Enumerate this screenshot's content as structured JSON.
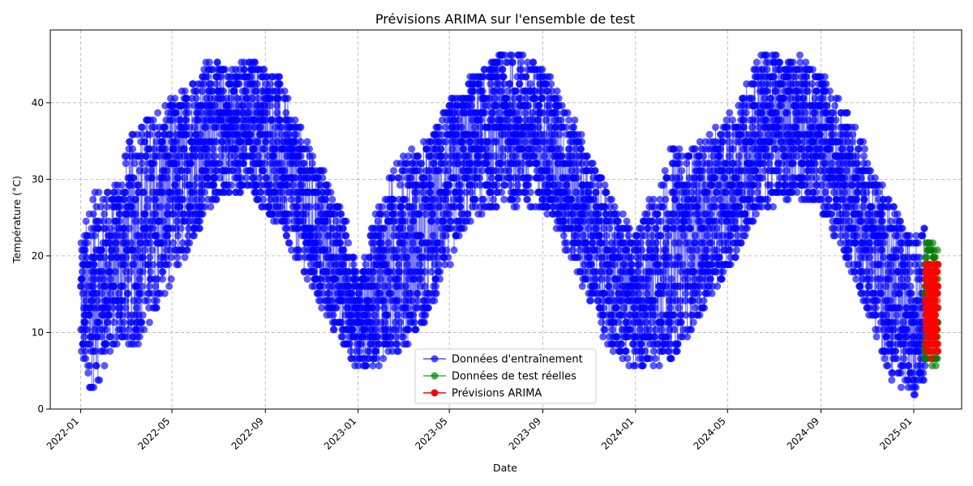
{
  "chart_data": {
    "type": "line",
    "title": "Prévisions ARIMA sur l'ensemble de test",
    "xlabel": "Date",
    "ylabel": "Température (°C)",
    "x_ticks": [
      "2022-01",
      "2022-05",
      "2022-09",
      "2023-01",
      "2023-05",
      "2023-09",
      "2024-01",
      "2024-05",
      "2024-09",
      "2025-01"
    ],
    "y_ticks": [
      "0",
      "10",
      "20",
      "30",
      "40"
    ],
    "xlim": [
      "2021-11-22",
      "2025-03-05"
    ],
    "ylim": [
      0,
      49.5
    ],
    "grid": true,
    "legend_position": "bottom-center",
    "series": [
      {
        "name": "Données d'entraînement",
        "color": "#0000ff",
        "date_range": [
          "2022-01-01",
          "2025-01-15"
        ],
        "envelope": [
          {
            "date": "2022-01-01",
            "min": 5,
            "max": 22
          },
          {
            "date": "2022-01-15",
            "min": 2,
            "max": 28
          },
          {
            "date": "2022-02-15",
            "min": 8,
            "max": 29
          },
          {
            "date": "2022-03-15",
            "min": 8,
            "max": 38
          },
          {
            "date": "2022-04-15",
            "min": 14,
            "max": 39
          },
          {
            "date": "2022-05-15",
            "min": 19,
            "max": 42
          },
          {
            "date": "2022-06-15",
            "min": 26,
            "max": 46
          },
          {
            "date": "2022-07-15",
            "min": 28,
            "max": 45
          },
          {
            "date": "2022-08-15",
            "min": 28,
            "max": 46
          },
          {
            "date": "2022-09-15",
            "min": 24,
            "max": 44
          },
          {
            "date": "2022-10-15",
            "min": 19,
            "max": 37
          },
          {
            "date": "2022-11-15",
            "min": 13,
            "max": 31
          },
          {
            "date": "2022-12-15",
            "min": 8,
            "max": 25
          },
          {
            "date": "2023-01-01",
            "min": 5,
            "max": 17
          },
          {
            "date": "2023-02-01",
            "min": 6,
            "max": 29
          },
          {
            "date": "2023-03-01",
            "min": 8,
            "max": 33
          },
          {
            "date": "2023-04-01",
            "min": 11,
            "max": 35
          },
          {
            "date": "2023-05-01",
            "min": 19,
            "max": 40
          },
          {
            "date": "2023-06-01",
            "min": 25,
            "max": 44
          },
          {
            "date": "2023-07-15",
            "min": 27,
            "max": 47
          },
          {
            "date": "2023-09-01",
            "min": 26,
            "max": 45
          },
          {
            "date": "2023-10-15",
            "min": 18,
            "max": 37
          },
          {
            "date": "2023-12-01",
            "min": 7,
            "max": 27
          },
          {
            "date": "2024-01-01",
            "min": 5,
            "max": 23
          },
          {
            "date": "2024-02-15",
            "min": 6,
            "max": 34
          },
          {
            "date": "2024-04-01",
            "min": 13,
            "max": 35
          },
          {
            "date": "2024-05-01",
            "min": 18,
            "max": 38
          },
          {
            "date": "2024-06-15",
            "min": 26,
            "max": 47
          },
          {
            "date": "2024-08-01",
            "min": 28,
            "max": 46
          },
          {
            "date": "2024-09-01",
            "min": 26,
            "max": 44
          },
          {
            "date": "2024-10-15",
            "min": 17,
            "max": 37
          },
          {
            "date": "2024-12-01",
            "min": 4,
            "max": 27
          },
          {
            "date": "2025-01-01",
            "min": 2,
            "max": 22
          },
          {
            "date": "2025-01-15",
            "min": 4,
            "max": 24
          }
        ]
      },
      {
        "name": "Données de test réelles",
        "color": "#008000",
        "date_range": [
          "2025-01-15",
          "2025-02-01"
        ],
        "y_range": [
          6,
          22
        ]
      },
      {
        "name": "Prévisions ARIMA",
        "color": "#ff0000",
        "date_range": [
          "2025-01-16",
          "2025-02-01"
        ],
        "y_range": [
          7,
          19
        ]
      }
    ]
  }
}
